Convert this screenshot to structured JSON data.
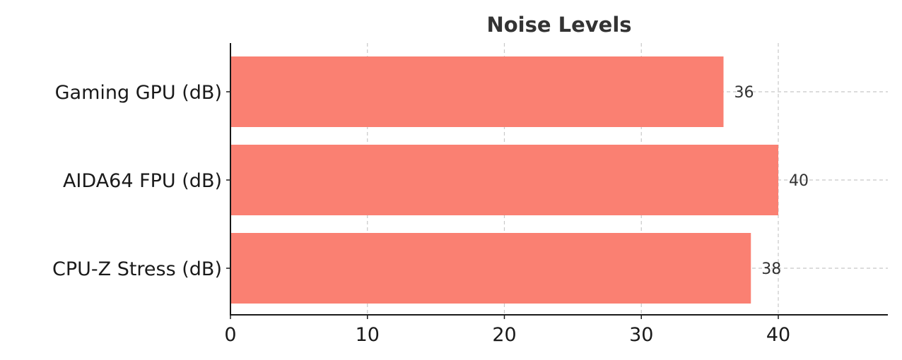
{
  "chart_data": {
    "type": "bar",
    "orientation": "horizontal",
    "title": "Noise Levels",
    "xlabel": "",
    "ylabel": "",
    "categories": [
      "Gaming GPU (dB)",
      "AIDA64 FPU (dB)",
      "CPU-Z Stress (dB)"
    ],
    "values": [
      36,
      40,
      38
    ],
    "xlim": [
      0,
      48
    ],
    "xticks": [
      0,
      10,
      20,
      30,
      40
    ],
    "grid": true,
    "bar_color": "#fa8072"
  }
}
